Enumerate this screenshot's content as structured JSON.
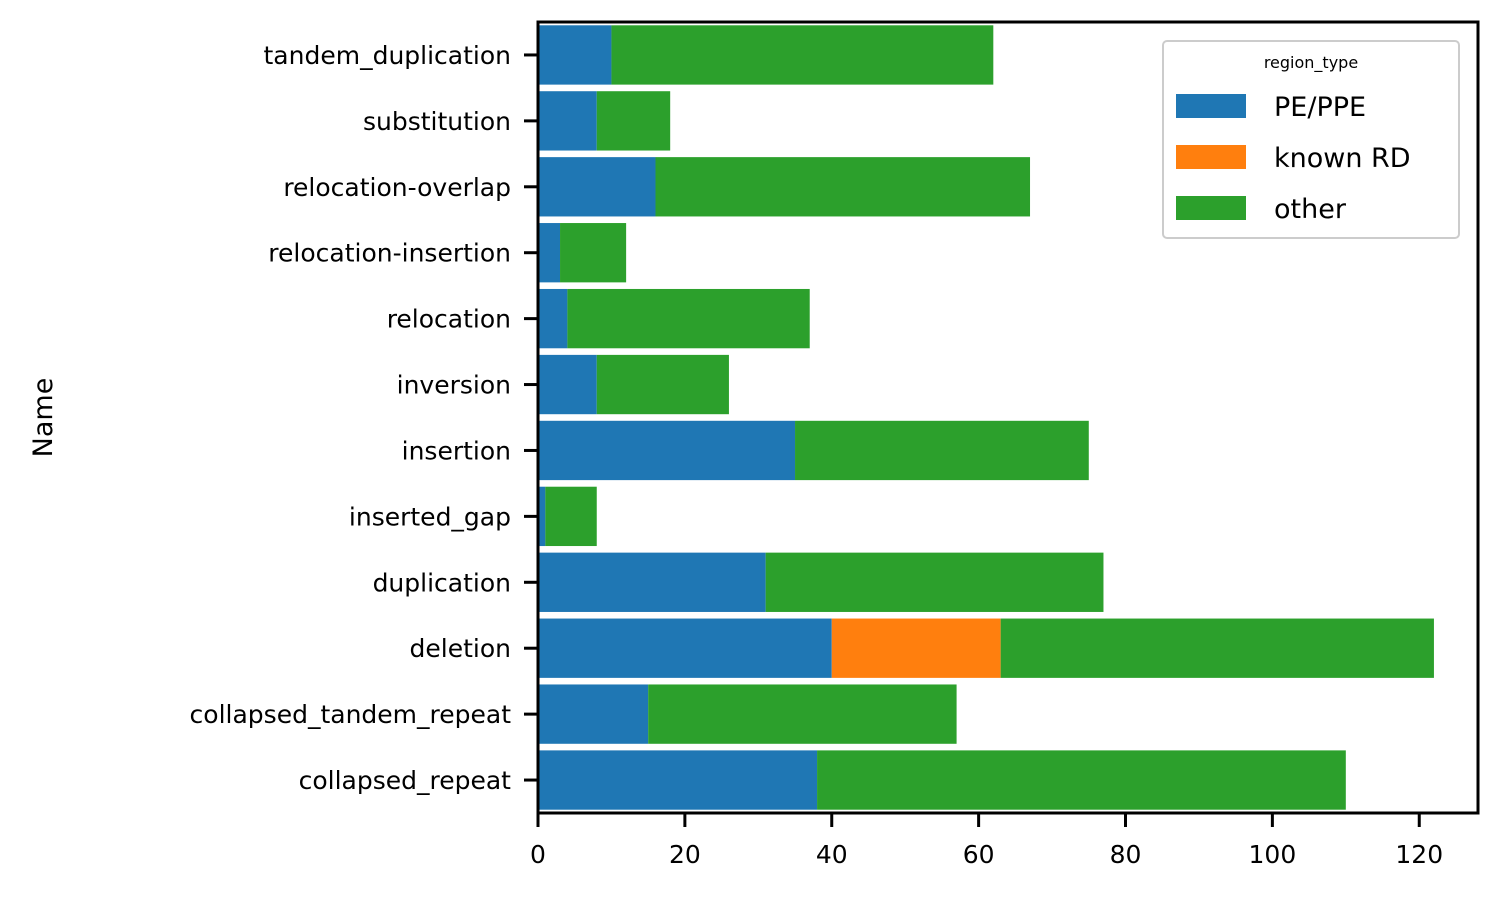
{
  "chart_data": {
    "type": "bar",
    "orientation": "horizontal",
    "stacked": true,
    "ylabel": "Name",
    "xlabel": "",
    "xlim": [
      0,
      128
    ],
    "xticks": [
      0,
      20,
      40,
      60,
      80,
      100,
      120
    ],
    "grid": false,
    "legend_title": "region_type",
    "legend_position": "top-right",
    "categories": [
      "tandem_duplication",
      "substitution",
      "relocation-overlap",
      "relocation-insertion",
      "relocation",
      "inversion",
      "insertion",
      "inserted_gap",
      "duplication",
      "deletion",
      "collapsed_tandem_repeat",
      "collapsed_repeat"
    ],
    "series": [
      {
        "name": "PE/PPE",
        "color": "#1f77b4",
        "values": [
          10,
          8,
          16,
          3,
          4,
          8,
          35,
          1,
          31,
          40,
          15,
          38
        ]
      },
      {
        "name": "known RD",
        "color": "#ff7f0e",
        "values": [
          0,
          0,
          0,
          0,
          0,
          0,
          0,
          0,
          0,
          23,
          0,
          0
        ]
      },
      {
        "name": "other",
        "color": "#2ca02c",
        "values": [
          52,
          10,
          51,
          9,
          33,
          18,
          40,
          7,
          46,
          59,
          42,
          72
        ]
      }
    ]
  }
}
